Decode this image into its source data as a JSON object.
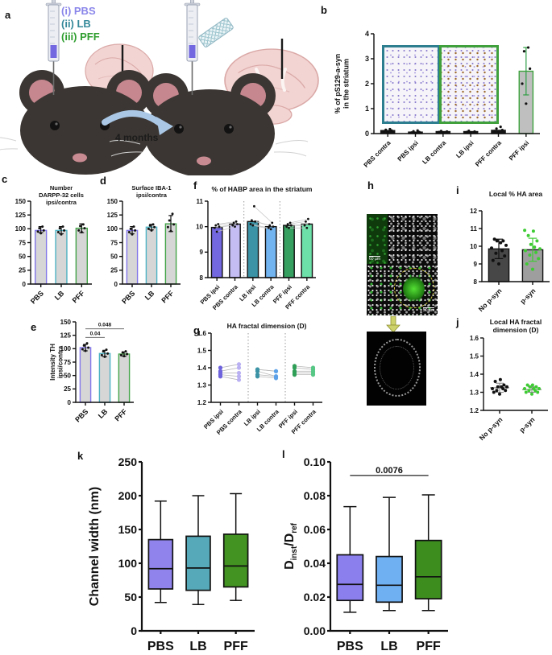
{
  "figure": {
    "panels": {
      "a": "a",
      "b": "b",
      "c": "c",
      "d": "d",
      "e": "e",
      "f": "f",
      "g": "g",
      "h": "h",
      "i": "i",
      "j": "j",
      "k": "k",
      "l": "l"
    }
  },
  "panel_a": {
    "legend": [
      {
        "label": "(i)  PBS",
        "color": "#8a86ea"
      },
      {
        "label": "(ii)  LB",
        "color": "#35899a"
      },
      {
        "label": "(iii) PFF",
        "color": "#2f9e2f"
      }
    ],
    "arrow_label": "4 months"
  },
  "panel_b": {
    "insets": [
      {
        "border": "#2d7f8f"
      },
      {
        "border": "#3fa03c"
      }
    ]
  },
  "panel_h": {
    "scale_bar_top": "60 µm",
    "scale_bar_bottom": "50 µm"
  },
  "chart_data": [
    {
      "id": "b",
      "type": "bar",
      "ylabel": "% of pS129-a-syn\nin the striatum",
      "ylim": [
        0,
        4
      ],
      "yticks": [
        "0",
        "1",
        "2",
        "3",
        "4"
      ],
      "x_rotate": true,
      "categories": [
        "PBS contra",
        "PBS ipsi",
        "LB contra",
        "LB ipsi",
        "PFF contra",
        "PFF ipsi"
      ],
      "bars": [
        {
          "value": 0.12,
          "fill": "#141414",
          "border": "#141414",
          "dots": [
            0.06,
            0.09,
            0.12,
            0.15,
            0.18
          ]
        },
        {
          "value": 0.06,
          "fill": "#141414",
          "border": "#141414",
          "dots": [
            0.02,
            0.04,
            0.06,
            0.09,
            0.12
          ]
        },
        {
          "value": 0.08,
          "fill": "#141414",
          "border": "#141414",
          "dots": [
            0.04,
            0.06,
            0.08,
            0.1
          ]
        },
        {
          "value": 0.08,
          "fill": "#141414",
          "border": "#141414",
          "dots": [
            0.04,
            0.06,
            0.08,
            0.11
          ]
        },
        {
          "value": 0.13,
          "fill": "#141414",
          "border": "#141414",
          "dots": [
            0.06,
            0.1,
            0.14,
            0.2,
            0.27
          ]
        },
        {
          "value": 2.5,
          "fill": "#bfbfbf",
          "border": "#3fa33f",
          "err": [
            1.55,
            3.45
          ],
          "err_color": "#2f9e44",
          "dots": [
            1.2,
            2.0,
            2.6,
            3.3,
            3.45
          ]
        }
      ]
    },
    {
      "id": "c",
      "type": "bar",
      "title": "Number\nDARPP-32 cells\nipsi/contra",
      "ylim": [
        0,
        150
      ],
      "yticks": [
        "0",
        "25",
        "50",
        "75",
        "100",
        "125",
        "150"
      ],
      "x_rotate": true,
      "categories": [
        "PBS",
        "LB",
        "PFF"
      ],
      "bars": [
        {
          "value": 97,
          "fill": "#d6d6d6",
          "border": "#8276ea",
          "err": [
            93,
            104
          ],
          "dots": [
            92,
            95,
            97,
            101,
            104
          ]
        },
        {
          "value": 97,
          "fill": "#d6d6d6",
          "border": "#4db3c4",
          "err": [
            91,
            104
          ],
          "dots": [
            90,
            94,
            97,
            101,
            104
          ]
        },
        {
          "value": 101,
          "fill": "#d6d6d6",
          "border": "#44a348",
          "err": [
            93,
            109
          ],
          "dots": [
            94,
            97,
            101,
            105,
            108
          ]
        }
      ]
    },
    {
      "id": "d",
      "type": "bar",
      "title": "Surface IBA-1\nipsi/contra",
      "ylim": [
        0,
        150
      ],
      "yticks": [
        "0",
        "25",
        "50",
        "75",
        "100",
        "125",
        "150"
      ],
      "x_rotate": true,
      "categories": [
        "PBS",
        "LB",
        "PFF"
      ],
      "bars": [
        {
          "value": 97,
          "fill": "#d6d6d6",
          "border": "#8276ea",
          "err": [
            91,
            104
          ],
          "dots": [
            90,
            94,
            97,
            100,
            104
          ]
        },
        {
          "value": 103,
          "fill": "#d6d6d6",
          "border": "#4db3c4",
          "err": [
            98,
            108
          ],
          "dots": [
            97,
            100,
            103,
            106,
            108
          ]
        },
        {
          "value": 109,
          "fill": "#d6d6d6",
          "border": "#44a348",
          "err": [
            95,
            124
          ],
          "dots": [
            96,
            103,
            108,
            115,
            127
          ]
        }
      ]
    },
    {
      "id": "e",
      "type": "bar",
      "ylabel": "Intensity TH\nipsi/contra",
      "ylim": [
        0,
        150
      ],
      "yticks": [
        "0",
        "25",
        "50",
        "75",
        "100",
        "125",
        "150"
      ],
      "x_rotate": true,
      "categories": [
        "PBS",
        "LB",
        "PFF"
      ],
      "annotations": [
        {
          "from": 0,
          "to": 1,
          "y": 121,
          "label": "0.04"
        },
        {
          "from": 0,
          "to": 2,
          "y": 137,
          "label": "0.048"
        }
      ],
      "bars": [
        {
          "value": 102,
          "fill": "#d6d6d6",
          "border": "#8276ea",
          "err": [
            96,
            108
          ],
          "dots": [
            96,
            99,
            102,
            106,
            110
          ]
        },
        {
          "value": 91,
          "fill": "#d6d6d6",
          "border": "#4db3c4",
          "err": [
            85,
            97
          ],
          "dots": [
            85,
            88,
            91,
            95,
            98
          ]
        },
        {
          "value": 90,
          "fill": "#d6d6d6",
          "border": "#44a348",
          "err": [
            86,
            94
          ],
          "dots": [
            86,
            88,
            90,
            93,
            95
          ]
        }
      ]
    },
    {
      "id": "f",
      "type": "bar",
      "title": "% of HABP area in the striatum",
      "ylim": [
        8,
        11
      ],
      "yticks": [
        "8",
        "9",
        "10",
        "11"
      ],
      "x_rotate": true,
      "separators": [
        2,
        4
      ],
      "pairs": [
        [
          0,
          1
        ],
        [
          2,
          3
        ],
        [
          4,
          5
        ]
      ],
      "categories": [
        "PBS ipsi",
        "PBS contra",
        "LB ipsi",
        "LB contra",
        "PFF ipsi",
        "PFF contra"
      ],
      "bars": [
        {
          "value": 9.97,
          "fill": "#7468e0",
          "border": "#111111",
          "dots": [
            9.8,
            9.95,
            10.0,
            10.05,
            10.1
          ]
        },
        {
          "value": 10.1,
          "fill": "#c4bdf4",
          "border": "#111111",
          "dots": [
            10.0,
            10.05,
            10.1,
            10.15,
            10.2
          ]
        },
        {
          "value": 10.2,
          "fill": "#3b93a5",
          "border": "#111111",
          "dots": [
            10.05,
            10.1,
            10.2,
            10.25,
            10.8
          ]
        },
        {
          "value": 10.0,
          "fill": "#72b4f0",
          "border": "#111111",
          "dots": [
            9.9,
            9.95,
            10.0,
            10.05,
            10.15
          ]
        },
        {
          "value": 10.05,
          "fill": "#36a060",
          "border": "#111111",
          "dots": [
            9.95,
            10.0,
            10.05,
            10.1,
            10.15
          ]
        },
        {
          "value": 10.1,
          "fill": "#6ce0a8",
          "border": "#111111",
          "dots": [
            9.95,
            10.05,
            10.1,
            10.2,
            10.3
          ]
        }
      ]
    },
    {
      "id": "g",
      "type": "paired",
      "title": "HA fractal dimension (D)",
      "ylim": [
        1.2,
        1.6
      ],
      "yticks": [
        "1.2",
        "1.3",
        "1.4",
        "1.5",
        "1.6"
      ],
      "x_rotate": true,
      "separators": [
        2,
        4
      ],
      "pairs": [
        [
          0,
          1
        ],
        [
          2,
          3
        ],
        [
          4,
          5
        ]
      ],
      "categories": [
        "PBS ipsi",
        "PBS contra",
        "LB ipsi",
        "LB contra",
        "PFF ipsi",
        "PFF contra"
      ],
      "columns": [
        {
          "color": "#6f63dd",
          "points": [
            1.35,
            1.36,
            1.37,
            1.38,
            1.4
          ]
        },
        {
          "color": "#b9b0f2",
          "points": [
            1.33,
            1.35,
            1.37,
            1.4,
            1.42
          ]
        },
        {
          "color": "#3b93a5",
          "points": [
            1.35,
            1.36,
            1.38,
            1.39,
            1.39
          ]
        },
        {
          "color": "#5da2e8",
          "points": [
            1.34,
            1.35,
            1.35,
            1.38,
            1.38
          ]
        },
        {
          "color": "#2f9e57",
          "points": [
            1.36,
            1.37,
            1.38,
            1.4,
            1.41
          ]
        },
        {
          "color": "#57c785",
          "points": [
            1.36,
            1.37,
            1.38,
            1.39,
            1.4
          ]
        }
      ]
    },
    {
      "id": "i",
      "type": "bar",
      "title": "Local % HA area",
      "ylim": [
        8,
        12
      ],
      "yticks": [
        "8",
        "9",
        "10",
        "11",
        "12"
      ],
      "x_rotate": true,
      "categories": [
        "No p-syn",
        "p-syn"
      ],
      "bars": [
        {
          "value": 9.85,
          "fill": "#474747",
          "border": "#111111",
          "err": [
            9.3,
            10.4
          ],
          "dot_color": "#111111",
          "dots": [
            9.0,
            9.2,
            9.45,
            9.6,
            9.75,
            9.9,
            10.05,
            10.2,
            10.3,
            10.3,
            10.4
          ]
        },
        {
          "value": 9.8,
          "fill": "#9e9e9e",
          "border": "#111111",
          "err": [
            9.15,
            10.45
          ],
          "err_color": "#3ecb33",
          "dot_color": "#3ecb33",
          "dots": [
            8.7,
            9.0,
            9.3,
            9.5,
            9.65,
            9.75,
            9.85,
            9.95,
            10.1,
            10.3,
            10.6,
            10.85,
            10.9
          ]
        }
      ]
    },
    {
      "id": "j",
      "type": "dots",
      "title": "Local HA fractal\ndimension (D)",
      "ylim": [
        1.2,
        1.6
      ],
      "yticks": [
        "1.2",
        "1.3",
        "1.4",
        "1.5",
        "1.6"
      ],
      "x_rotate": true,
      "categories": [
        "No p-syn",
        "p-syn"
      ],
      "columns": [
        {
          "color": "#111111",
          "mean": 1.325,
          "err": [
            1.3,
            1.35
          ],
          "points": [
            1.29,
            1.3,
            1.31,
            1.31,
            1.32,
            1.32,
            1.33,
            1.33,
            1.33,
            1.34,
            1.36,
            1.37
          ]
        },
        {
          "color": "#3ecb33",
          "mean": 1.315,
          "err": [
            1.3,
            1.33
          ],
          "points": [
            1.29,
            1.3,
            1.3,
            1.31,
            1.31,
            1.32,
            1.32,
            1.32,
            1.33,
            1.33,
            1.34,
            1.34
          ]
        }
      ]
    },
    {
      "id": "k",
      "type": "box",
      "ylabel": "Channel width (nm)",
      "ylim": [
        0,
        250
      ],
      "yticks": [
        "0",
        "50",
        "100",
        "150",
        "200",
        "250"
      ],
      "categories": [
        "PBS",
        "LB",
        "PFF"
      ],
      "boxes": [
        {
          "color": "#9084ec",
          "lo": 42,
          "q1": 62,
          "med": 92,
          "q3": 135,
          "hi": 192
        },
        {
          "color": "#55a9b8",
          "lo": 39,
          "q1": 60,
          "med": 93,
          "q3": 140,
          "hi": 200
        },
        {
          "color": "#429321",
          "lo": 45,
          "q1": 65,
          "med": 96,
          "q3": 143,
          "hi": 203
        }
      ]
    },
    {
      "id": "l",
      "type": "box",
      "ylabel_rich": [
        {
          "t": "D"
        },
        {
          "t": "inst",
          "sub": true
        },
        {
          "t": "/D",
          "after_sub": true
        },
        {
          "t": "ref",
          "sub": true
        }
      ],
      "ylim": [
        0,
        0.1
      ],
      "yticks": [
        "0.00",
        "0.02",
        "0.04",
        "0.06",
        "0.08",
        "0.10"
      ],
      "categories": [
        "PBS",
        "LB",
        "PFF"
      ],
      "annotations": [
        {
          "from": 0,
          "to": 2,
          "y": 0.092,
          "label": "0.0076"
        }
      ],
      "boxes": [
        {
          "color": "#8b7eed",
          "lo": 0.011,
          "q1": 0.018,
          "med": 0.0275,
          "q3": 0.045,
          "hi": 0.0735
        },
        {
          "color": "#6fb0f2",
          "lo": 0.012,
          "q1": 0.017,
          "med": 0.027,
          "q3": 0.044,
          "hi": 0.079
        },
        {
          "color": "#3c8c1e",
          "lo": 0.012,
          "q1": 0.019,
          "med": 0.032,
          "q3": 0.0535,
          "hi": 0.0805
        }
      ]
    }
  ]
}
